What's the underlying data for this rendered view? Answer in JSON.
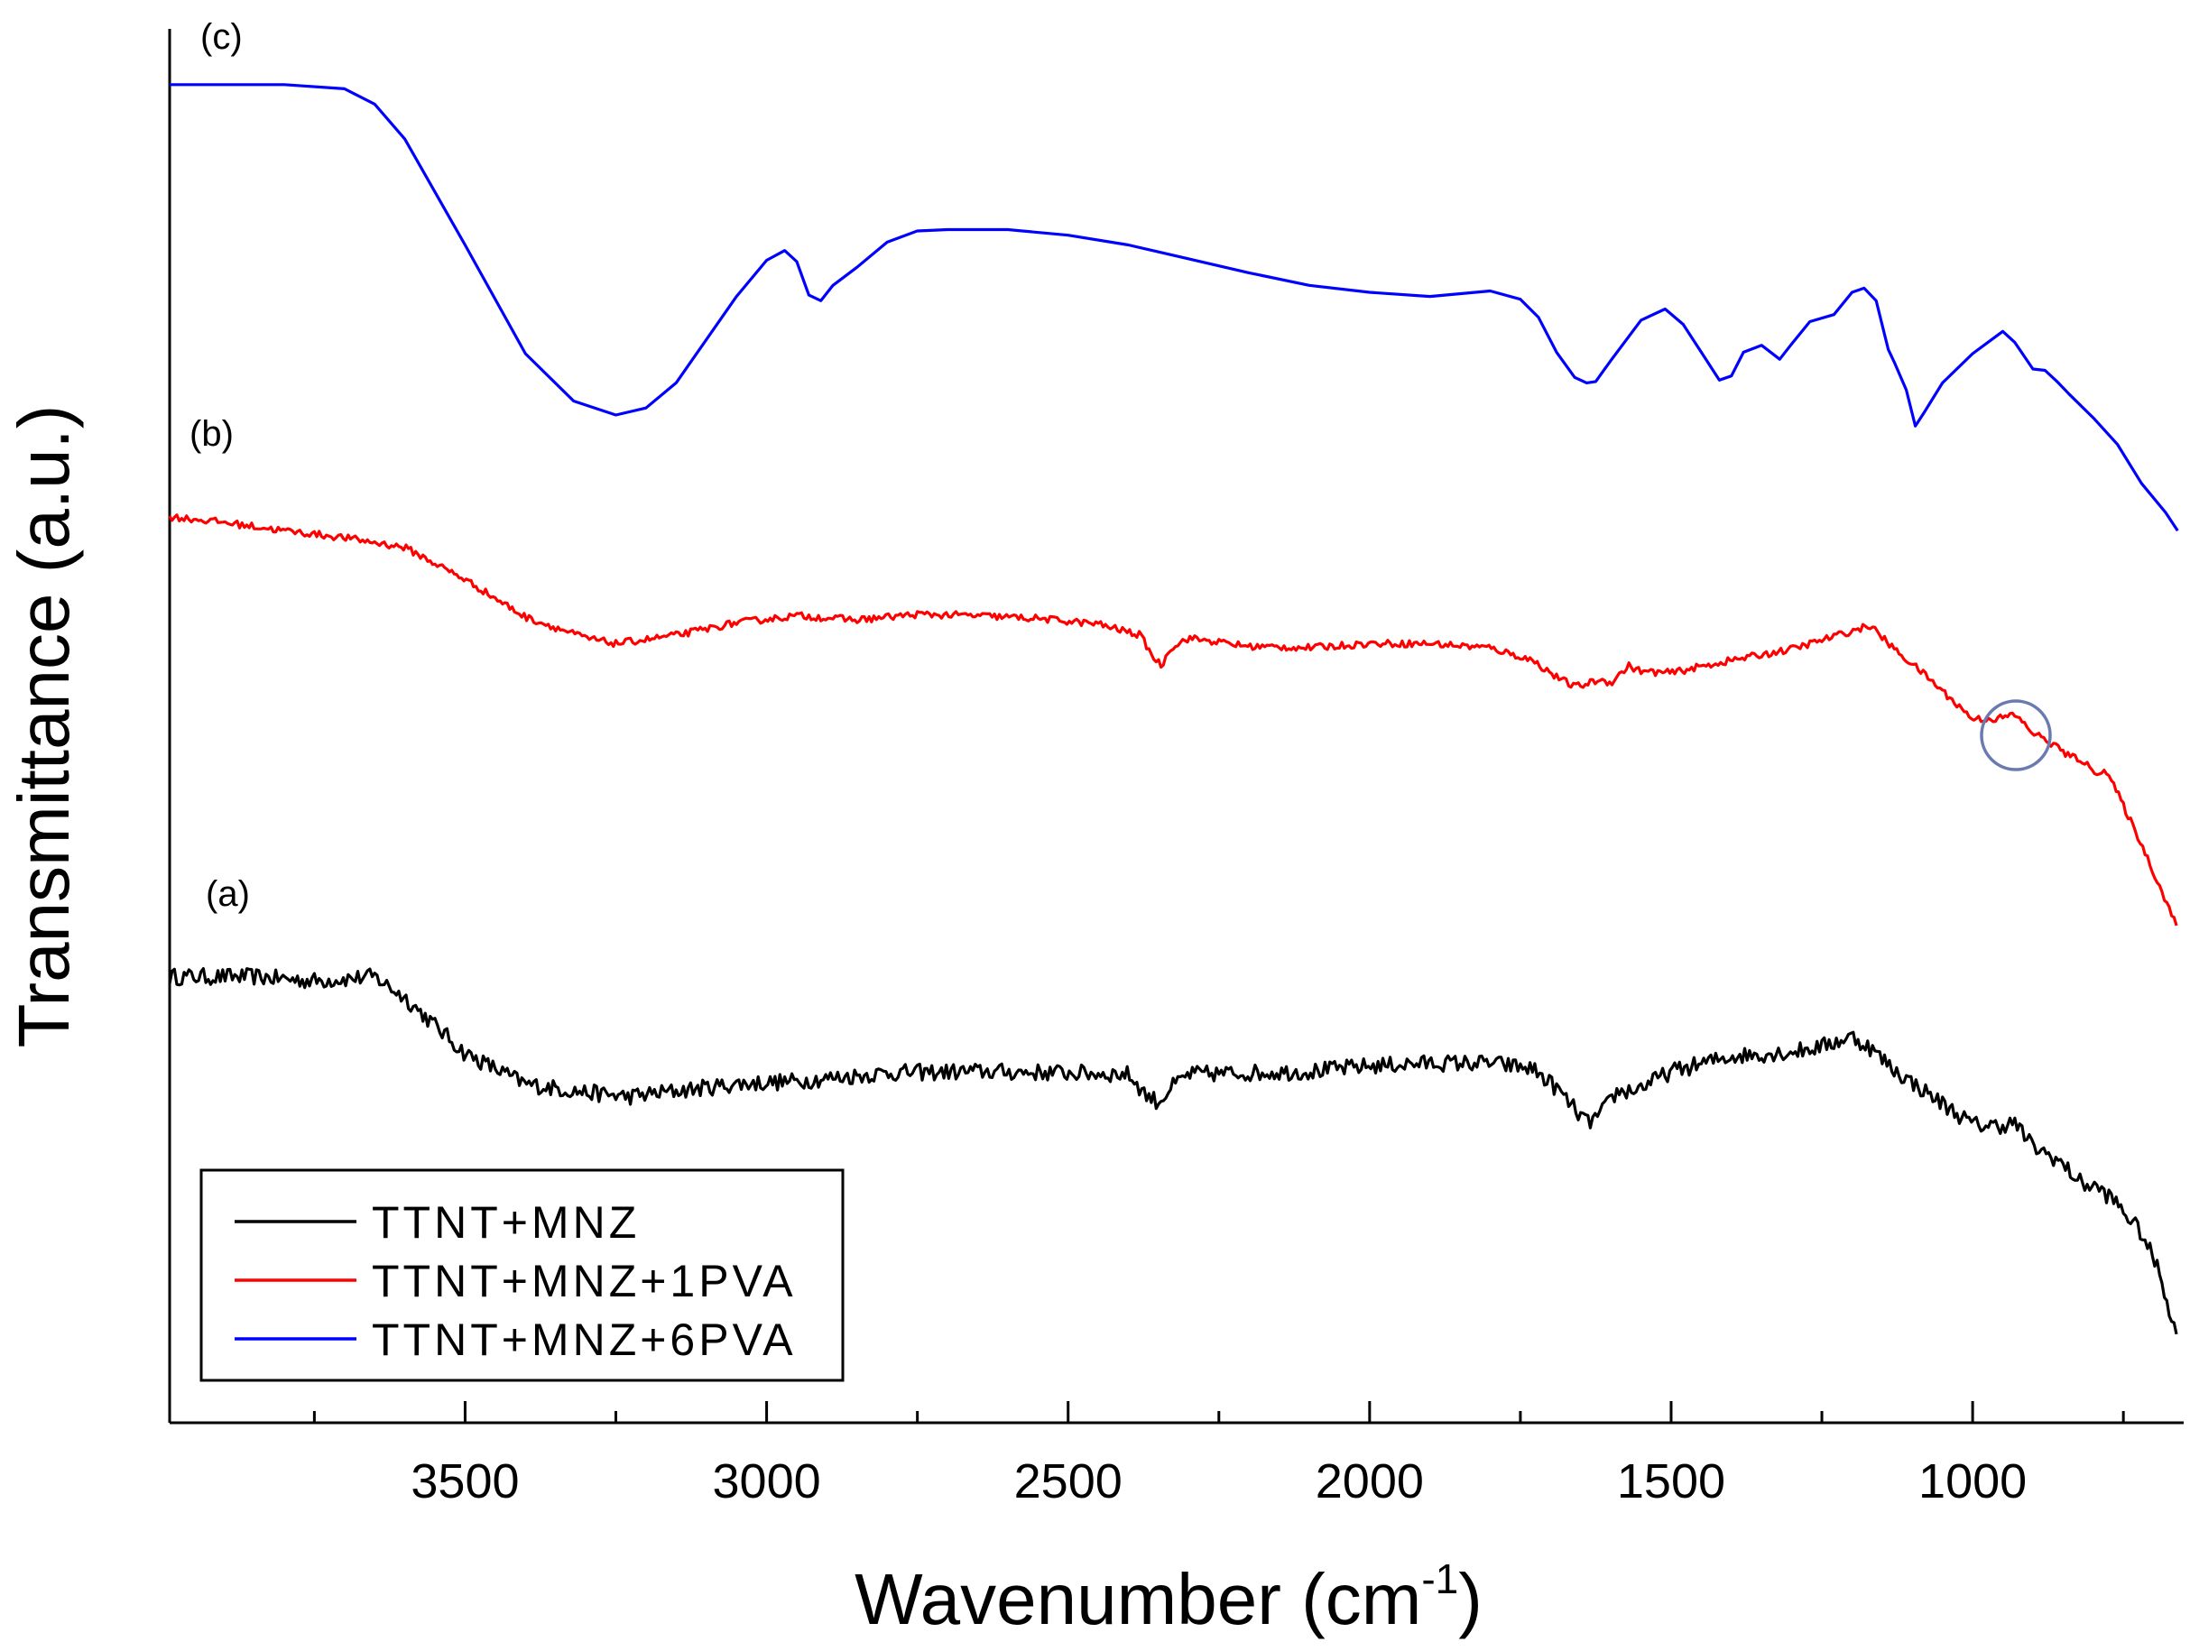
{
  "chart_data": {
    "type": "line",
    "title": "",
    "xlabel": "Wavenumber (cm",
    "xlabel_sup": "-1",
    "xlabel_close": ")",
    "ylabel": "Transmittance (a.u.)",
    "xlim": [
      3990,
      650
    ],
    "ylim": [
      0,
      100
    ],
    "x_ticks": [
      3500,
      3000,
      2500,
      2000,
      1500,
      1000
    ],
    "x_tick_labels": [
      "3500",
      "3000",
      "2500",
      "2000",
      "1500",
      "1000"
    ],
    "curve_labels": [
      "(c)",
      "(b)",
      "(a)"
    ],
    "legend": {
      "position": "bottom-left",
      "entries": [
        "TTNT+MNZ",
        "TTNT+MNZ+1PVA",
        "TTNT+MNZ+6PVA"
      ]
    },
    "series": [
      {
        "name": "TTNT+MNZ",
        "label": "(a)",
        "color": "#000000",
        "noise": 0.6,
        "x": [
          3990,
          3850,
          3750,
          3650,
          3600,
          3500,
          3400,
          3300,
          3230,
          3150,
          3050,
          2950,
          2800,
          2650,
          2500,
          2400,
          2370,
          2350,
          2330,
          2300,
          2200,
          2100,
          2000,
          1900,
          1800,
          1730,
          1690,
          1660,
          1640,
          1620,
          1590,
          1560,
          1530,
          1500,
          1400,
          1300,
          1250,
          1200,
          1170,
          1130,
          1080,
          1000,
          960,
          930,
          900,
          860,
          820,
          790,
          760,
          720,
          690,
          660
        ],
        "y": [
          32.0,
          32.0,
          31.7,
          32.0,
          30.5,
          26.5,
          24.3,
          23.7,
          23.4,
          23.8,
          24.3,
          24.5,
          25.1,
          25.2,
          25.1,
          25.0,
          23.5,
          23.0,
          24.0,
          25.0,
          25.1,
          25.2,
          25.6,
          25.8,
          25.8,
          25.4,
          24.0,
          22.5,
          21.5,
          22.0,
          23.7,
          23.9,
          24.5,
          25.2,
          26.3,
          26.6,
          27.0,
          27.7,
          26.9,
          25.3,
          23.8,
          21.4,
          21.3,
          21.5,
          19.8,
          18.9,
          17.2,
          16.8,
          15.7,
          13.6,
          10.8,
          5.9
        ]
      },
      {
        "name": "TTNT+MNZ+1PVA",
        "label": "(b)",
        "color": "#ff0000",
        "noise": 0.25,
        "x": [
          3990,
          3900,
          3800,
          3700,
          3600,
          3500,
          3400,
          3300,
          3250,
          3150,
          3050,
          2950,
          2850,
          2750,
          2650,
          2550,
          2450,
          2380,
          2360,
          2345,
          2330,
          2300,
          2200,
          2100,
          2000,
          1900,
          1800,
          1730,
          1690,
          1660,
          1640,
          1620,
          1600,
          1570,
          1550,
          1500,
          1400,
          1300,
          1200,
          1170,
          1130,
          1080,
          1000,
          960,
          930,
          900,
          860,
          840,
          820,
          800,
          780,
          760,
          720,
          690,
          660
        ],
        "y": [
          65.0,
          64.6,
          64.0,
          63.5,
          62.8,
          60.5,
          57.8,
          56.3,
          55.9,
          56.5,
          57.4,
          57.9,
          57.6,
          58.0,
          57.9,
          57.7,
          57.3,
          56.5,
          55.0,
          54.3,
          55.6,
          56.3,
          55.7,
          55.6,
          55.9,
          55.9,
          55.6,
          54.7,
          53.5,
          52.8,
          53.0,
          53.3,
          53.1,
          54.3,
          53.9,
          53.8,
          54.7,
          55.5,
          56.8,
          57.2,
          55.5,
          53.7,
          50.5,
          50.5,
          50.8,
          49.5,
          48.5,
          47.8,
          47.6,
          46.7,
          46.8,
          45.2,
          41.5,
          38.5,
          35.5
        ]
      },
      {
        "name": "TTNT+MNZ+6PVA",
        "label": "(c)",
        "color": "#0000ff",
        "noise": 0,
        "x": [
          3990,
          3800,
          3700,
          3650,
          3600,
          3500,
          3400,
          3320,
          3250,
          3200,
          3150,
          3050,
          3000,
          2970,
          2950,
          2930,
          2910,
          2890,
          2850,
          2800,
          2750,
          2700,
          2600,
          2500,
          2400,
          2300,
          2200,
          2100,
          2000,
          1900,
          1800,
          1750,
          1720,
          1690,
          1660,
          1640,
          1625,
          1600,
          1550,
          1510,
          1480,
          1450,
          1420,
          1400,
          1380,
          1350,
          1320,
          1300,
          1270,
          1230,
          1200,
          1180,
          1160,
          1140,
          1130,
          1110,
          1095,
          1080,
          1050,
          1000,
          950,
          930,
          900,
          880,
          860,
          840,
          800,
          760,
          720,
          680,
          660
        ],
        "y": [
          96.0,
          96.0,
          95.7,
          94.6,
          92.1,
          84.5,
          76.7,
          73.3,
          72.3,
          72.8,
          74.6,
          80.8,
          83.4,
          84.1,
          83.3,
          80.9,
          80.5,
          81.6,
          82.9,
          84.7,
          85.5,
          85.6,
          85.6,
          85.2,
          84.5,
          83.5,
          82.5,
          81.6,
          81.1,
          80.8,
          81.2,
          80.6,
          79.3,
          76.8,
          75.0,
          74.6,
          74.7,
          76.2,
          79.1,
          79.9,
          78.8,
          76.8,
          74.8,
          75.1,
          76.8,
          77.3,
          76.3,
          77.4,
          79.0,
          79.5,
          81.1,
          81.4,
          80.5,
          77.0,
          76.1,
          74.1,
          71.5,
          72.5,
          74.6,
          76.7,
          78.3,
          77.5,
          75.6,
          75.5,
          74.7,
          73.8,
          72.1,
          70.2,
          67.4,
          65.3,
          64.0
        ]
      }
    ]
  }
}
